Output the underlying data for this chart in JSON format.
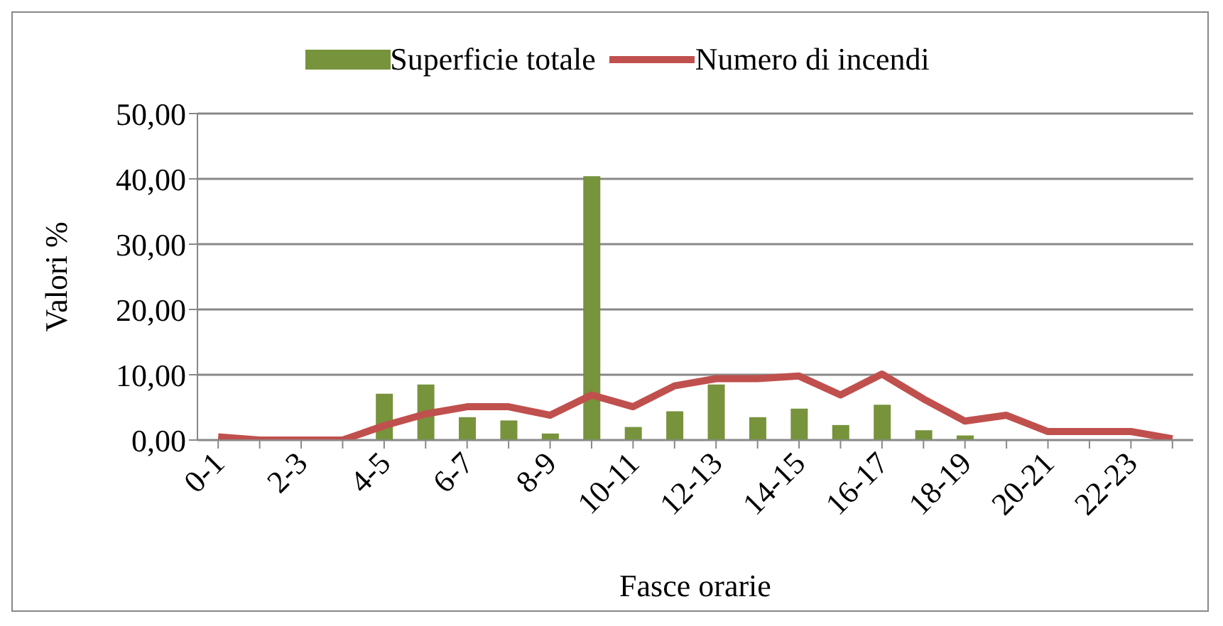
{
  "chart_data": {
    "type": "bar",
    "xlabel": "Fasce orarie",
    "ylabel": "Valori %",
    "categories": [
      "0-1",
      null,
      "2-3",
      null,
      "4-5",
      null,
      "6-7",
      null,
      "8-9",
      null,
      "10-11",
      null,
      "12-13",
      null,
      "14-15",
      null,
      "16-17",
      null,
      "18-19",
      null,
      "20-21",
      null,
      "22-23",
      null
    ],
    "series": [
      {
        "name": "Superficie totale",
        "color": "#77933c",
        "values": [
          0,
          0,
          0,
          0,
          7.1,
          8.5,
          3.5,
          3.0,
          1.0,
          40.4,
          2.0,
          4.4,
          8.5,
          3.5,
          4.8,
          2.3,
          5.4,
          1.5,
          0.7,
          0,
          0,
          0,
          0,
          0
        ]
      },
      {
        "name": "Numero di incendi",
        "type": "line",
        "color": "#c0504d",
        "values": [
          0.5,
          0,
          0,
          0,
          2.2,
          4.0,
          5.1,
          5.1,
          3.8,
          6.9,
          5.1,
          8.3,
          9.4,
          9.4,
          9.8,
          6.9,
          10.1,
          6.3,
          2.9,
          3.8,
          1.3,
          1.3,
          1.3,
          0.2
        ]
      }
    ],
    "ylim": [
      0,
      50
    ],
    "yticks": [
      {
        "value": 0,
        "label": "0,00"
      },
      {
        "value": 10,
        "label": "10,00"
      },
      {
        "value": 20,
        "label": "20,00"
      },
      {
        "value": 30,
        "label": "30,00"
      },
      {
        "value": 40,
        "label": "40,00"
      },
      {
        "value": 50,
        "label": "50,00"
      }
    ],
    "grid": "y",
    "legend": "top",
    "marker": "none"
  }
}
